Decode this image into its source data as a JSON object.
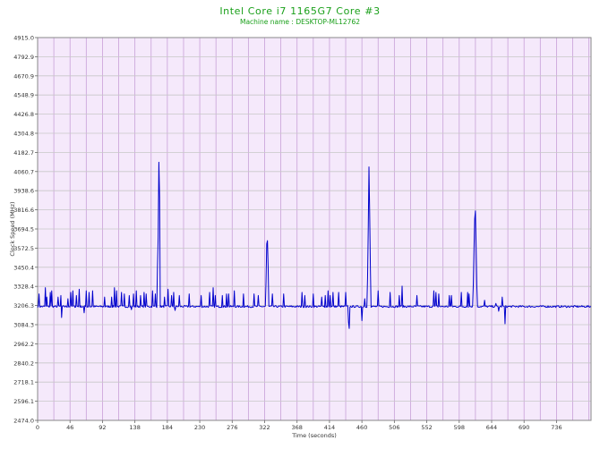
{
  "header": {
    "title": "Intel Core i7 1165G7 Core #3",
    "subtitle": "Machine name : DESKTOP-ML12762"
  },
  "colors": {
    "title": "#1aa01a",
    "plot_background": "#f5e9fb",
    "grid_vertical": "#c8a0d8",
    "grid_horizontal": "#c8c8c8",
    "series": "#0000cc",
    "tick_text": "#333333"
  },
  "chart_data": {
    "type": "line",
    "title": "Intel Core i7 1165G7 Core #3",
    "subtitle": "Machine name : DESKTOP-ML12762",
    "xlabel": "Time (seconds)",
    "ylabel": "Clock Speed (MHz)",
    "xlim": [
      0,
      785
    ],
    "ylim": [
      2474.0,
      4915.0
    ],
    "grid": true,
    "x_ticks": [
      0,
      46,
      92,
      138,
      184,
      230,
      276,
      322,
      368,
      414,
      460,
      506,
      552,
      598,
      644,
      690,
      736
    ],
    "y_ticks": [
      2474.0,
      2596.1,
      2718.1,
      2840.2,
      2962.2,
      3084.3,
      3206.3,
      3328.4,
      3450.4,
      3572.5,
      3694.5,
      3816.6,
      3938.6,
      4060.7,
      4182.7,
      4304.8,
      4426.8,
      4548.9,
      4670.9,
      4792.9,
      4915.0
    ],
    "y_tick_labels": [
      "2474.0",
      "2596.1",
      "2718.1",
      "2840.2",
      "2962.2",
      "3084.3",
      "3206.3",
      "3328.4",
      "3450.4",
      "3572.5",
      "3694.5",
      "3816.6",
      "3938.6",
      "4060.7",
      "4182.7",
      "4304.8",
      "4426.8",
      "4548.9",
      "4670.9",
      "4792.9",
      "4915.0"
    ],
    "baseline": 3200,
    "series": [
      {
        "spikes": [
          [
            2,
            3280
          ],
          [
            11,
            3320
          ],
          [
            13,
            3260
          ],
          [
            18,
            3290
          ],
          [
            20,
            3300
          ],
          [
            29,
            3260
          ],
          [
            33,
            3270
          ],
          [
            43,
            3250
          ],
          [
            47,
            3290
          ],
          [
            50,
            3300
          ],
          [
            55,
            3270
          ],
          [
            59,
            3310
          ],
          [
            66,
            3270
          ],
          [
            69,
            3300
          ],
          [
            73,
            3290
          ],
          [
            78,
            3300
          ],
          [
            95,
            3260
          ],
          [
            105,
            3260
          ],
          [
            109,
            3320
          ],
          [
            112,
            3300
          ],
          [
            119,
            3290
          ],
          [
            123,
            3280
          ],
          [
            130,
            3270
          ],
          [
            136,
            3280
          ],
          [
            140,
            3300
          ],
          [
            146,
            3270
          ],
          [
            151,
            3290
          ],
          [
            154,
            3280
          ],
          [
            163,
            3300
          ],
          [
            167,
            3280
          ],
          [
            170,
            3450
          ],
          [
            171,
            3640
          ],
          [
            172,
            4120
          ],
          [
            173,
            3900
          ],
          [
            180,
            3260
          ],
          [
            185,
            3310
          ],
          [
            190,
            3270
          ],
          [
            193,
            3290
          ],
          [
            201,
            3270
          ],
          [
            215,
            3280
          ],
          [
            232,
            3270
          ],
          [
            244,
            3290
          ],
          [
            249,
            3320
          ],
          [
            252,
            3270
          ],
          [
            262,
            3270
          ],
          [
            268,
            3280
          ],
          [
            271,
            3280
          ],
          [
            279,
            3300
          ],
          [
            292,
            3280
          ],
          [
            307,
            3280
          ],
          [
            313,
            3270
          ],
          [
            324,
            3360
          ],
          [
            325,
            3600
          ],
          [
            326,
            3620
          ],
          [
            327,
            3450
          ],
          [
            333,
            3280
          ],
          [
            349,
            3280
          ],
          [
            375,
            3290
          ],
          [
            379,
            3270
          ],
          [
            391,
            3280
          ],
          [
            403,
            3260
          ],
          [
            408,
            3270
          ],
          [
            412,
            3300
          ],
          [
            415,
            3270
          ],
          [
            419,
            3290
          ],
          [
            427,
            3290
          ],
          [
            437,
            3290
          ],
          [
            464,
            3250
          ],
          [
            468,
            3380
          ],
          [
            469,
            3700
          ],
          [
            470,
            4090
          ],
          [
            471,
            3800
          ],
          [
            472,
            3450
          ],
          [
            483,
            3300
          ],
          [
            500,
            3290
          ],
          [
            513,
            3270
          ],
          [
            517,
            3330
          ],
          [
            538,
            3270
          ],
          [
            562,
            3300
          ],
          [
            565,
            3290
          ],
          [
            569,
            3280
          ],
          [
            584,
            3270
          ],
          [
            587,
            3270
          ],
          [
            601,
            3290
          ],
          [
            610,
            3290
          ],
          [
            612,
            3280
          ],
          [
            618,
            3340
          ],
          [
            619,
            3570
          ],
          [
            620,
            3760
          ],
          [
            621,
            3810
          ],
          [
            622,
            3580
          ],
          [
            623,
            3330
          ],
          [
            634,
            3240
          ],
          [
            650,
            3220
          ],
          [
            659,
            3260
          ]
        ],
        "dips": [
          [
            34,
            3130
          ],
          [
            66,
            3160
          ],
          [
            133,
            3180
          ],
          [
            195,
            3175
          ],
          [
            441,
            3100
          ],
          [
            442,
            3060
          ],
          [
            460,
            3110
          ],
          [
            654,
            3170
          ],
          [
            663,
            3090
          ]
        ]
      }
    ]
  }
}
